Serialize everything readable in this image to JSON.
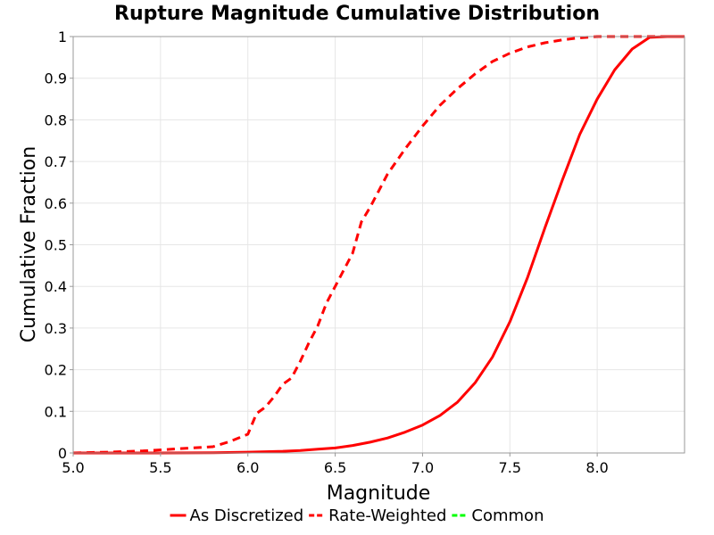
{
  "chart_data": {
    "type": "line",
    "title": "Rupture Magnitude Cumulative Distribution",
    "xlabel": "Magnitude",
    "ylabel": "Cumulative Fraction",
    "xlim": [
      5.0,
      8.5
    ],
    "ylim": [
      0,
      1
    ],
    "x_ticks": [
      "5.0",
      "5.5",
      "6.0",
      "6.5",
      "7.0",
      "7.5",
      "8.0"
    ],
    "y_ticks": [
      "0",
      "0.1",
      "0.2",
      "0.3",
      "0.4",
      "0.5",
      "0.6",
      "0.7",
      "0.8",
      "0.9",
      "1"
    ],
    "grid": true,
    "legend_position": "bottom",
    "series": [
      {
        "name": "As Discretized",
        "style": "solid",
        "color": "#ff0000",
        "points": [
          [
            5.0,
            0.0
          ],
          [
            5.5,
            0.0
          ],
          [
            5.8,
            0.0005
          ],
          [
            6.0,
            0.002
          ],
          [
            6.2,
            0.004
          ],
          [
            6.3,
            0.006
          ],
          [
            6.4,
            0.009
          ],
          [
            6.5,
            0.012
          ],
          [
            6.6,
            0.018
          ],
          [
            6.7,
            0.026
          ],
          [
            6.8,
            0.036
          ],
          [
            6.9,
            0.05
          ],
          [
            7.0,
            0.067
          ],
          [
            7.1,
            0.09
          ],
          [
            7.2,
            0.122
          ],
          [
            7.3,
            0.168
          ],
          [
            7.4,
            0.23
          ],
          [
            7.5,
            0.315
          ],
          [
            7.6,
            0.42
          ],
          [
            7.7,
            0.54
          ],
          [
            7.8,
            0.655
          ],
          [
            7.9,
            0.765
          ],
          [
            8.0,
            0.85
          ],
          [
            8.1,
            0.92
          ],
          [
            8.2,
            0.97
          ],
          [
            8.3,
            0.998
          ],
          [
            8.4,
            1.0
          ],
          [
            8.5,
            1.0
          ]
        ]
      },
      {
        "name": "Rate-Weighted",
        "style": "dashed",
        "color": "#ff0000",
        "points": [
          [
            5.0,
            0.0
          ],
          [
            5.2,
            0.002
          ],
          [
            5.4,
            0.005
          ],
          [
            5.6,
            0.01
          ],
          [
            5.8,
            0.015
          ],
          [
            5.9,
            0.028
          ],
          [
            6.0,
            0.045
          ],
          [
            6.05,
            0.095
          ],
          [
            6.1,
            0.11
          ],
          [
            6.15,
            0.135
          ],
          [
            6.2,
            0.165
          ],
          [
            6.25,
            0.18
          ],
          [
            6.3,
            0.22
          ],
          [
            6.35,
            0.265
          ],
          [
            6.4,
            0.305
          ],
          [
            6.45,
            0.36
          ],
          [
            6.5,
            0.4
          ],
          [
            6.55,
            0.44
          ],
          [
            6.6,
            0.48
          ],
          [
            6.65,
            0.555
          ],
          [
            6.7,
            0.59
          ],
          [
            6.75,
            0.63
          ],
          [
            6.8,
            0.67
          ],
          [
            6.9,
            0.73
          ],
          [
            7.0,
            0.785
          ],
          [
            7.1,
            0.835
          ],
          [
            7.2,
            0.875
          ],
          [
            7.3,
            0.91
          ],
          [
            7.4,
            0.94
          ],
          [
            7.5,
            0.96
          ],
          [
            7.6,
            0.975
          ],
          [
            7.7,
            0.985
          ],
          [
            7.8,
            0.992
          ],
          [
            7.9,
            0.997
          ],
          [
            8.0,
            1.0
          ],
          [
            8.5,
            1.0
          ]
        ]
      },
      {
        "name": "Common",
        "style": "dashed",
        "color": "#00ff00",
        "points": []
      }
    ]
  }
}
